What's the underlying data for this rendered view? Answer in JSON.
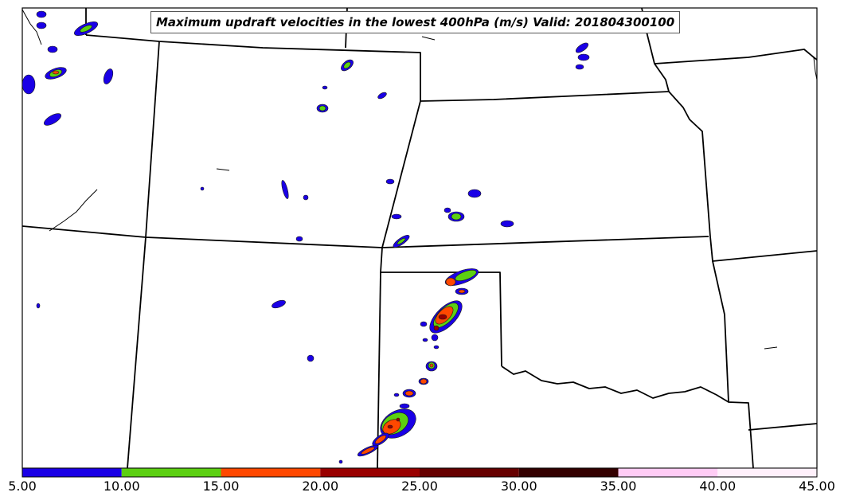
{
  "title": "Maximum updraft velocities in the lowest 400hPa (m/s) Valid: 201804300100",
  "colorbar": {
    "ticks": [
      "5.00",
      "10.00",
      "15.00",
      "20.00",
      "25.00",
      "30.00",
      "35.00",
      "40.00",
      "45.00"
    ],
    "colors": [
      "#1a00e6",
      "#5cd012",
      "#ff4800",
      "#990000",
      "#660000",
      "#330000",
      "#ffccf5",
      "#fff0fb"
    ]
  },
  "colors": {
    "blue": "#1a00e6",
    "green": "#5cd012",
    "orange": "#ff4800",
    "darkred": "#990000",
    "border": "#000000"
  }
}
